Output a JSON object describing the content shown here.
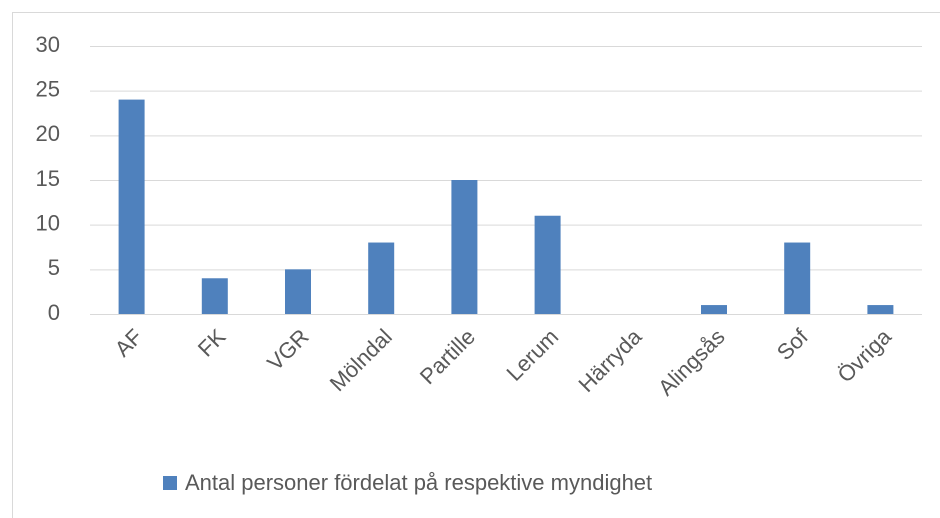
{
  "chart_data": {
    "type": "bar",
    "categories": [
      "AF",
      "FK",
      "VGR",
      "Mölndal",
      "Partille",
      "Lerum",
      "Härryda",
      "Alingsås",
      "Sof",
      "Övriga"
    ],
    "series": [
      {
        "name": "Antal personer fördelat på respektive myndighet",
        "color": "#4f81bd",
        "values": [
          24,
          4,
          5,
          8,
          15,
          11,
          0,
          1,
          8,
          1
        ]
      }
    ],
    "ylim": [
      0,
      30
    ],
    "yticks": [
      0,
      5,
      10,
      15,
      20,
      25,
      30
    ],
    "grid": true,
    "legend": "bottom"
  }
}
